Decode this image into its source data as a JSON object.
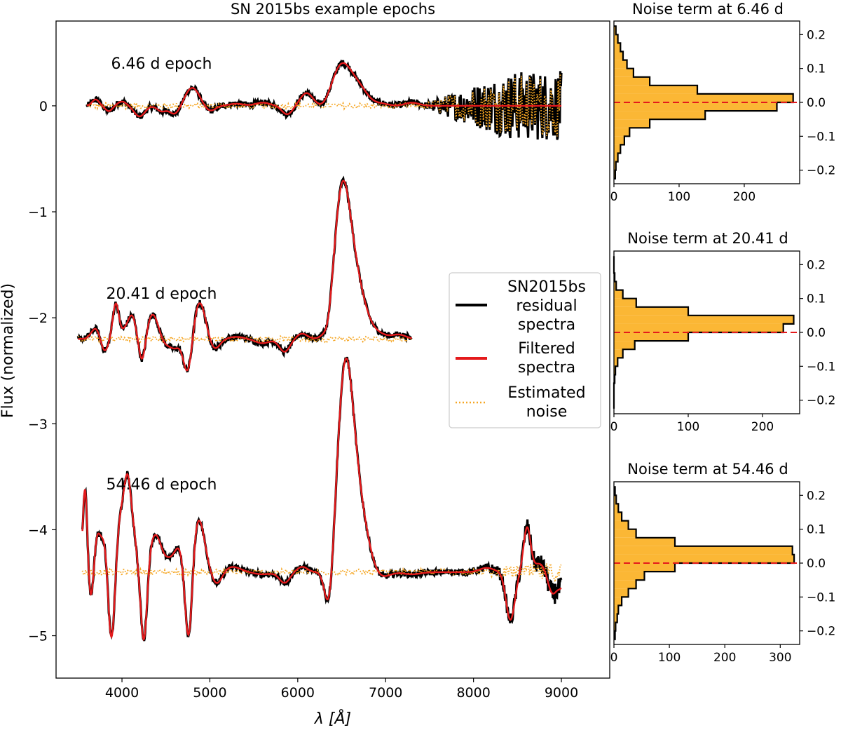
{
  "chart_data": [
    {
      "type": "line",
      "title": "SN 2015bs example epochs",
      "xlabel": "λ [Å]",
      "ylabel": "Flux (normalized)",
      "xlim": [
        3250,
        9550
      ],
      "ylim": [
        -5.4,
        0.8
      ],
      "x_ticks": [
        4000,
        5000,
        6000,
        7000,
        8000,
        9000
      ],
      "x_tick_labels": [
        "4000",
        "5000",
        "6000",
        "7000",
        "8000",
        "9000"
      ],
      "y_ticks": [
        0,
        -1,
        -2,
        -3,
        -4,
        -5
      ],
      "y_tick_labels": [
        "0",
        "−1",
        "−2",
        "−3",
        "−4",
        "−5"
      ],
      "legend": {
        "position": "center-right",
        "entries": [
          {
            "label_lines": [
              "SN2015bs",
              "residual",
              "spectra"
            ],
            "color": "#000000",
            "style": "solid"
          },
          {
            "label_lines": [
              "Filtered",
              "spectra"
            ],
            "color": "#e41a1c",
            "style": "solid"
          },
          {
            "label_lines": [
              "Estimated",
              "noise"
            ],
            "color": "#f5a623",
            "style": "dotted"
          }
        ]
      },
      "epochs": [
        {
          "label": "6.46 d epoch",
          "offset": 0,
          "label_at": [
            4450,
            0.35
          ],
          "x_range": [
            3600,
            9000
          ],
          "noise_amp": 0.03,
          "noise_growth_start": 7450,
          "noise_growth_amp": 0.3,
          "features": [
            [
              3700,
              0.06,
              40
            ],
            [
              3850,
              -0.05,
              40
            ],
            [
              4000,
              0.04,
              50
            ],
            [
              4200,
              -0.1,
              60
            ],
            [
              4450,
              -0.05,
              50
            ],
            [
              4600,
              -0.08,
              60
            ],
            [
              4800,
              0.17,
              80
            ],
            [
              5000,
              -0.05,
              60
            ],
            [
              5300,
              0.02,
              80
            ],
            [
              5600,
              0.03,
              80
            ],
            [
              5880,
              -0.08,
              60
            ],
            [
              6100,
              0.12,
              70
            ],
            [
              6300,
              -0.03,
              60
            ],
            [
              6500,
              0.38,
              110
            ],
            [
              6700,
              0.15,
              100
            ],
            [
              6950,
              0.02,
              80
            ],
            [
              7300,
              0.03,
              80
            ]
          ]
        },
        {
          "label": "20.41 d epoch",
          "offset": -2.2,
          "label_at": [
            4450,
            -1.82
          ],
          "x_range": [
            3500,
            7300
          ],
          "noise_amp": 0.03,
          "noise_growth_start": 9999,
          "noise_growth_amp": 0,
          "features": [
            [
              3700,
              0.1,
              50
            ],
            [
              3800,
              -0.12,
              40
            ],
            [
              3930,
              0.33,
              35
            ],
            [
              4050,
              0.1,
              50
            ],
            [
              4120,
              0.18,
              40
            ],
            [
              4230,
              -0.22,
              35
            ],
            [
              4350,
              0.23,
              60
            ],
            [
              4500,
              -0.05,
              50
            ],
            [
              4600,
              -0.08,
              50
            ],
            [
              4750,
              -0.35,
              50
            ],
            [
              4880,
              0.35,
              70
            ],
            [
              5050,
              -0.1,
              60
            ],
            [
              5300,
              0.02,
              80
            ],
            [
              5600,
              -0.04,
              80
            ],
            [
              5850,
              -0.12,
              60
            ],
            [
              6050,
              0.05,
              60
            ],
            [
              6350,
              -0.1,
              40
            ],
            [
              6500,
              1.25,
              90
            ],
            [
              6650,
              0.55,
              110
            ],
            [
              6900,
              0.05,
              100
            ],
            [
              7150,
              0.04,
              80
            ]
          ]
        },
        {
          "label": "54.46 d epoch",
          "offset": -4.4,
          "label_at": [
            4450,
            -3.62
          ],
          "x_range": [
            3550,
            9000
          ],
          "noise_amp": 0.03,
          "noise_growth_start": 8000,
          "noise_growth_amp": 0.08,
          "features": [
            [
              3580,
              0.8,
              25
            ],
            [
              3650,
              -0.3,
              30
            ],
            [
              3720,
              0.35,
              40
            ],
            [
              3800,
              0.25,
              35
            ],
            [
              3880,
              -0.65,
              35
            ],
            [
              3980,
              0.45,
              40
            ],
            [
              4060,
              0.8,
              40
            ],
            [
              4130,
              0.3,
              40
            ],
            [
              4250,
              -0.7,
              35
            ],
            [
              4380,
              0.35,
              70
            ],
            [
              4550,
              0.1,
              60
            ],
            [
              4650,
              0.2,
              50
            ],
            [
              4760,
              -0.75,
              40
            ],
            [
              4870,
              0.5,
              70
            ],
            [
              5080,
              -0.12,
              60
            ],
            [
              5250,
              0.05,
              100
            ],
            [
              5600,
              -0.02,
              100
            ],
            [
              5850,
              -0.1,
              60
            ],
            [
              6050,
              0.05,
              60
            ],
            [
              6360,
              -0.45,
              50
            ],
            [
              6540,
              1.85,
              90
            ],
            [
              6700,
              0.55,
              100
            ],
            [
              6950,
              -0.05,
              90
            ],
            [
              7300,
              -0.02,
              100
            ],
            [
              8150,
              0.04,
              80
            ],
            [
              8420,
              -0.45,
              50
            ],
            [
              8610,
              0.42,
              40
            ],
            [
              8750,
              0.08,
              60
            ],
            [
              8900,
              -0.2,
              50
            ],
            [
              9000,
              -0.12,
              40
            ]
          ]
        }
      ]
    },
    {
      "type": "bar",
      "title": "Noise term at 6.46 d",
      "orientation": "horizontal",
      "ylim": [
        -0.24,
        0.24
      ],
      "y_ticks": [
        0.2,
        0.1,
        0.0,
        -0.1,
        -0.2
      ],
      "y_tick_labels": [
        "0.2",
        "0.1",
        "0.0",
        "−0.1",
        "−0.2"
      ],
      "xlim": [
        0,
        285
      ],
      "x_ticks": [
        0,
        100,
        200
      ],
      "x_tick_labels": [
        "0",
        "100",
        "200"
      ],
      "bin_edges": [
        -0.225,
        -0.2,
        -0.175,
        -0.15,
        -0.125,
        -0.1,
        -0.075,
        -0.05,
        -0.025,
        0.0,
        0.025,
        0.05,
        0.075,
        0.1,
        0.125,
        0.15,
        0.175,
        0.2,
        0.225
      ],
      "counts": [
        2,
        3,
        6,
        10,
        16,
        24,
        55,
        140,
        250,
        275,
        128,
        55,
        30,
        20,
        14,
        10,
        6,
        3
      ],
      "zero_line": 0.0
    },
    {
      "type": "bar",
      "title": "Noise term at 20.41 d",
      "orientation": "horizontal",
      "ylim": [
        -0.24,
        0.24
      ],
      "y_ticks": [
        0.2,
        0.1,
        0.0,
        -0.1,
        -0.2
      ],
      "y_tick_labels": [
        "0.2",
        "0.1",
        "0.0",
        "−0.1",
        "−0.2"
      ],
      "xlim": [
        0,
        250
      ],
      "x_ticks": [
        0,
        100,
        200
      ],
      "x_tick_labels": [
        "0",
        "100",
        "200"
      ],
      "bin_edges": [
        -0.225,
        -0.2,
        -0.175,
        -0.15,
        -0.125,
        -0.1,
        -0.075,
        -0.05,
        -0.025,
        0.0,
        0.025,
        0.05,
        0.075,
        0.1,
        0.125,
        0.15,
        0.175,
        0.2,
        0.225
      ],
      "counts": [
        0,
        0,
        0,
        1,
        2,
        5,
        12,
        28,
        100,
        228,
        242,
        100,
        30,
        12,
        3,
        1,
        0,
        0
      ],
      "zero_line": 0.0
    },
    {
      "type": "bar",
      "title": "Noise term at 54.46 d",
      "orientation": "horizontal",
      "ylim": [
        -0.24,
        0.24
      ],
      "y_ticks": [
        0.2,
        0.1,
        0.0,
        -0.1,
        -0.2
      ],
      "y_tick_labels": [
        "0.2",
        "0.1",
        "0.0",
        "−0.1",
        "−0.2"
      ],
      "xlim": [
        0,
        335
      ],
      "x_ticks": [
        0,
        100,
        200,
        300
      ],
      "x_tick_labels": [
        "0",
        "100",
        "200",
        "300"
      ],
      "bin_edges": [
        -0.225,
        -0.2,
        -0.175,
        -0.15,
        -0.125,
        -0.1,
        -0.075,
        -0.05,
        -0.025,
        0.0,
        0.025,
        0.05,
        0.075,
        0.1,
        0.125,
        0.15,
        0.175,
        0.2,
        0.225
      ],
      "counts": [
        2,
        3,
        6,
        8,
        14,
        26,
        40,
        55,
        110,
        325,
        322,
        110,
        40,
        26,
        14,
        8,
        4,
        2
      ],
      "zero_line": 0.0
    }
  ],
  "colors": {
    "observed": "#000000",
    "filtered": "#e41a1c",
    "noise": "#f5a623",
    "hist_fill": "#fbb735",
    "zero_line": "#e41a1c"
  }
}
